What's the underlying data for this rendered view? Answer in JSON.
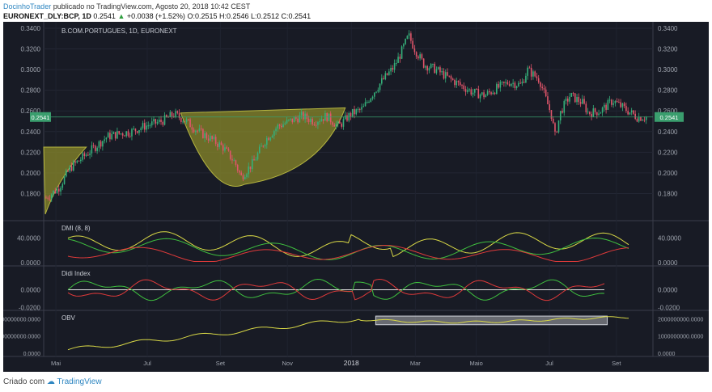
{
  "header": {
    "author": "DocinhoTrader",
    "published": "publicado no TradingView.com, Agosto 20, 2018 10:42 CEST",
    "symbol": "EURONEXT_DLY:BCP, 1D",
    "last": "0.2541",
    "change_arrow": "▲",
    "change": "+0.0038 (+1.52%)",
    "ohlc": "O:0.2515 H:0.2546 L:0.2512 C:0.2541"
  },
  "footer": {
    "created_with": "Criado com",
    "brand": "TradingView"
  },
  "chart_data": [
    {
      "type": "candlestick",
      "title": "B.COM.PORTUGUES, 1D, EURONEXT",
      "ylim": [
        0.16,
        0.34
      ],
      "y_ticks": [
        "0.3400",
        "0.3200",
        "0.3000",
        "0.2800",
        "0.2600",
        "0.2400",
        "0.2200",
        "0.2000",
        "0.1800"
      ],
      "current_price_label": "0.2541",
      "current_price": 0.2541,
      "x_ticks": [
        "Mai",
        "Jul",
        "Set",
        "Nov",
        "2018",
        "Mar",
        "Maio",
        "Jul",
        "Set"
      ],
      "close_trend": [
        [
          0,
          0.176
        ],
        [
          0.02,
          0.185
        ],
        [
          0.04,
          0.205
        ],
        [
          0.06,
          0.215
        ],
        [
          0.08,
          0.225
        ],
        [
          0.1,
          0.235
        ],
        [
          0.12,
          0.238
        ],
        [
          0.14,
          0.24
        ],
        [
          0.16,
          0.245
        ],
        [
          0.19,
          0.25
        ],
        [
          0.21,
          0.257
        ],
        [
          0.23,
          0.25
        ],
        [
          0.25,
          0.24
        ],
        [
          0.27,
          0.233
        ],
        [
          0.29,
          0.225
        ],
        [
          0.31,
          0.21
        ],
        [
          0.32,
          0.196
        ],
        [
          0.34,
          0.21
        ],
        [
          0.36,
          0.232
        ],
        [
          0.38,
          0.245
        ],
        [
          0.4,
          0.25
        ],
        [
          0.42,
          0.255
        ],
        [
          0.44,
          0.25
        ],
        [
          0.46,
          0.255
        ],
        [
          0.48,
          0.245
        ],
        [
          0.5,
          0.257
        ],
        [
          0.52,
          0.262
        ],
        [
          0.53,
          0.272
        ],
        [
          0.55,
          0.288
        ],
        [
          0.57,
          0.302
        ],
        [
          0.58,
          0.313
        ],
        [
          0.595,
          0.333
        ],
        [
          0.605,
          0.32
        ],
        [
          0.62,
          0.305
        ],
        [
          0.64,
          0.3
        ],
        [
          0.66,
          0.292
        ],
        [
          0.68,
          0.285
        ],
        [
          0.7,
          0.278
        ],
        [
          0.72,
          0.275
        ],
        [
          0.74,
          0.282
        ],
        [
          0.76,
          0.288
        ],
        [
          0.78,
          0.285
        ],
        [
          0.79,
          0.3
        ],
        [
          0.81,
          0.29
        ],
        [
          0.82,
          0.272
        ],
        [
          0.83,
          0.255
        ],
        [
          0.835,
          0.235
        ],
        [
          0.845,
          0.26
        ],
        [
          0.86,
          0.275
        ],
        [
          0.88,
          0.268
        ],
        [
          0.89,
          0.258
        ],
        [
          0.91,
          0.26
        ],
        [
          0.93,
          0.27
        ],
        [
          0.95,
          0.262
        ],
        [
          0.97,
          0.254
        ]
      ],
      "annotations": [
        "cup shape",
        "handle triangle"
      ]
    },
    {
      "type": "line",
      "title": "DMI (8, 8)",
      "ylim": [
        0,
        60
      ],
      "y_ticks": [
        "40.0000",
        "0.0000"
      ],
      "series": [
        {
          "color": "#d8d846"
        },
        {
          "color": "#3fbf3f"
        },
        {
          "color": "#e03a3a"
        }
      ]
    },
    {
      "type": "line",
      "title": "Didi Index",
      "ylim": [
        -0.02,
        0.02
      ],
      "y_ticks": [
        "0.0000",
        "-0.0200"
      ],
      "series": [
        {
          "color": "#3fbf3f"
        },
        {
          "color": "#e03a3a"
        }
      ]
    },
    {
      "type": "line",
      "title": "OBV",
      "ylim": [
        0,
        2200000000
      ],
      "y_ticks": [
        "2000000000.0000",
        "1000000000.0000",
        "0.0000"
      ],
      "series": [
        {
          "color": "#d8d846"
        }
      ],
      "highlight_rect": "2018 → Set"
    }
  ],
  "colors": {
    "up": "#35b07a",
    "down": "#e0556a",
    "bg": "#181b25",
    "price_tag": "#3a9e6e",
    "cup_fill": "#8a8a2a"
  }
}
